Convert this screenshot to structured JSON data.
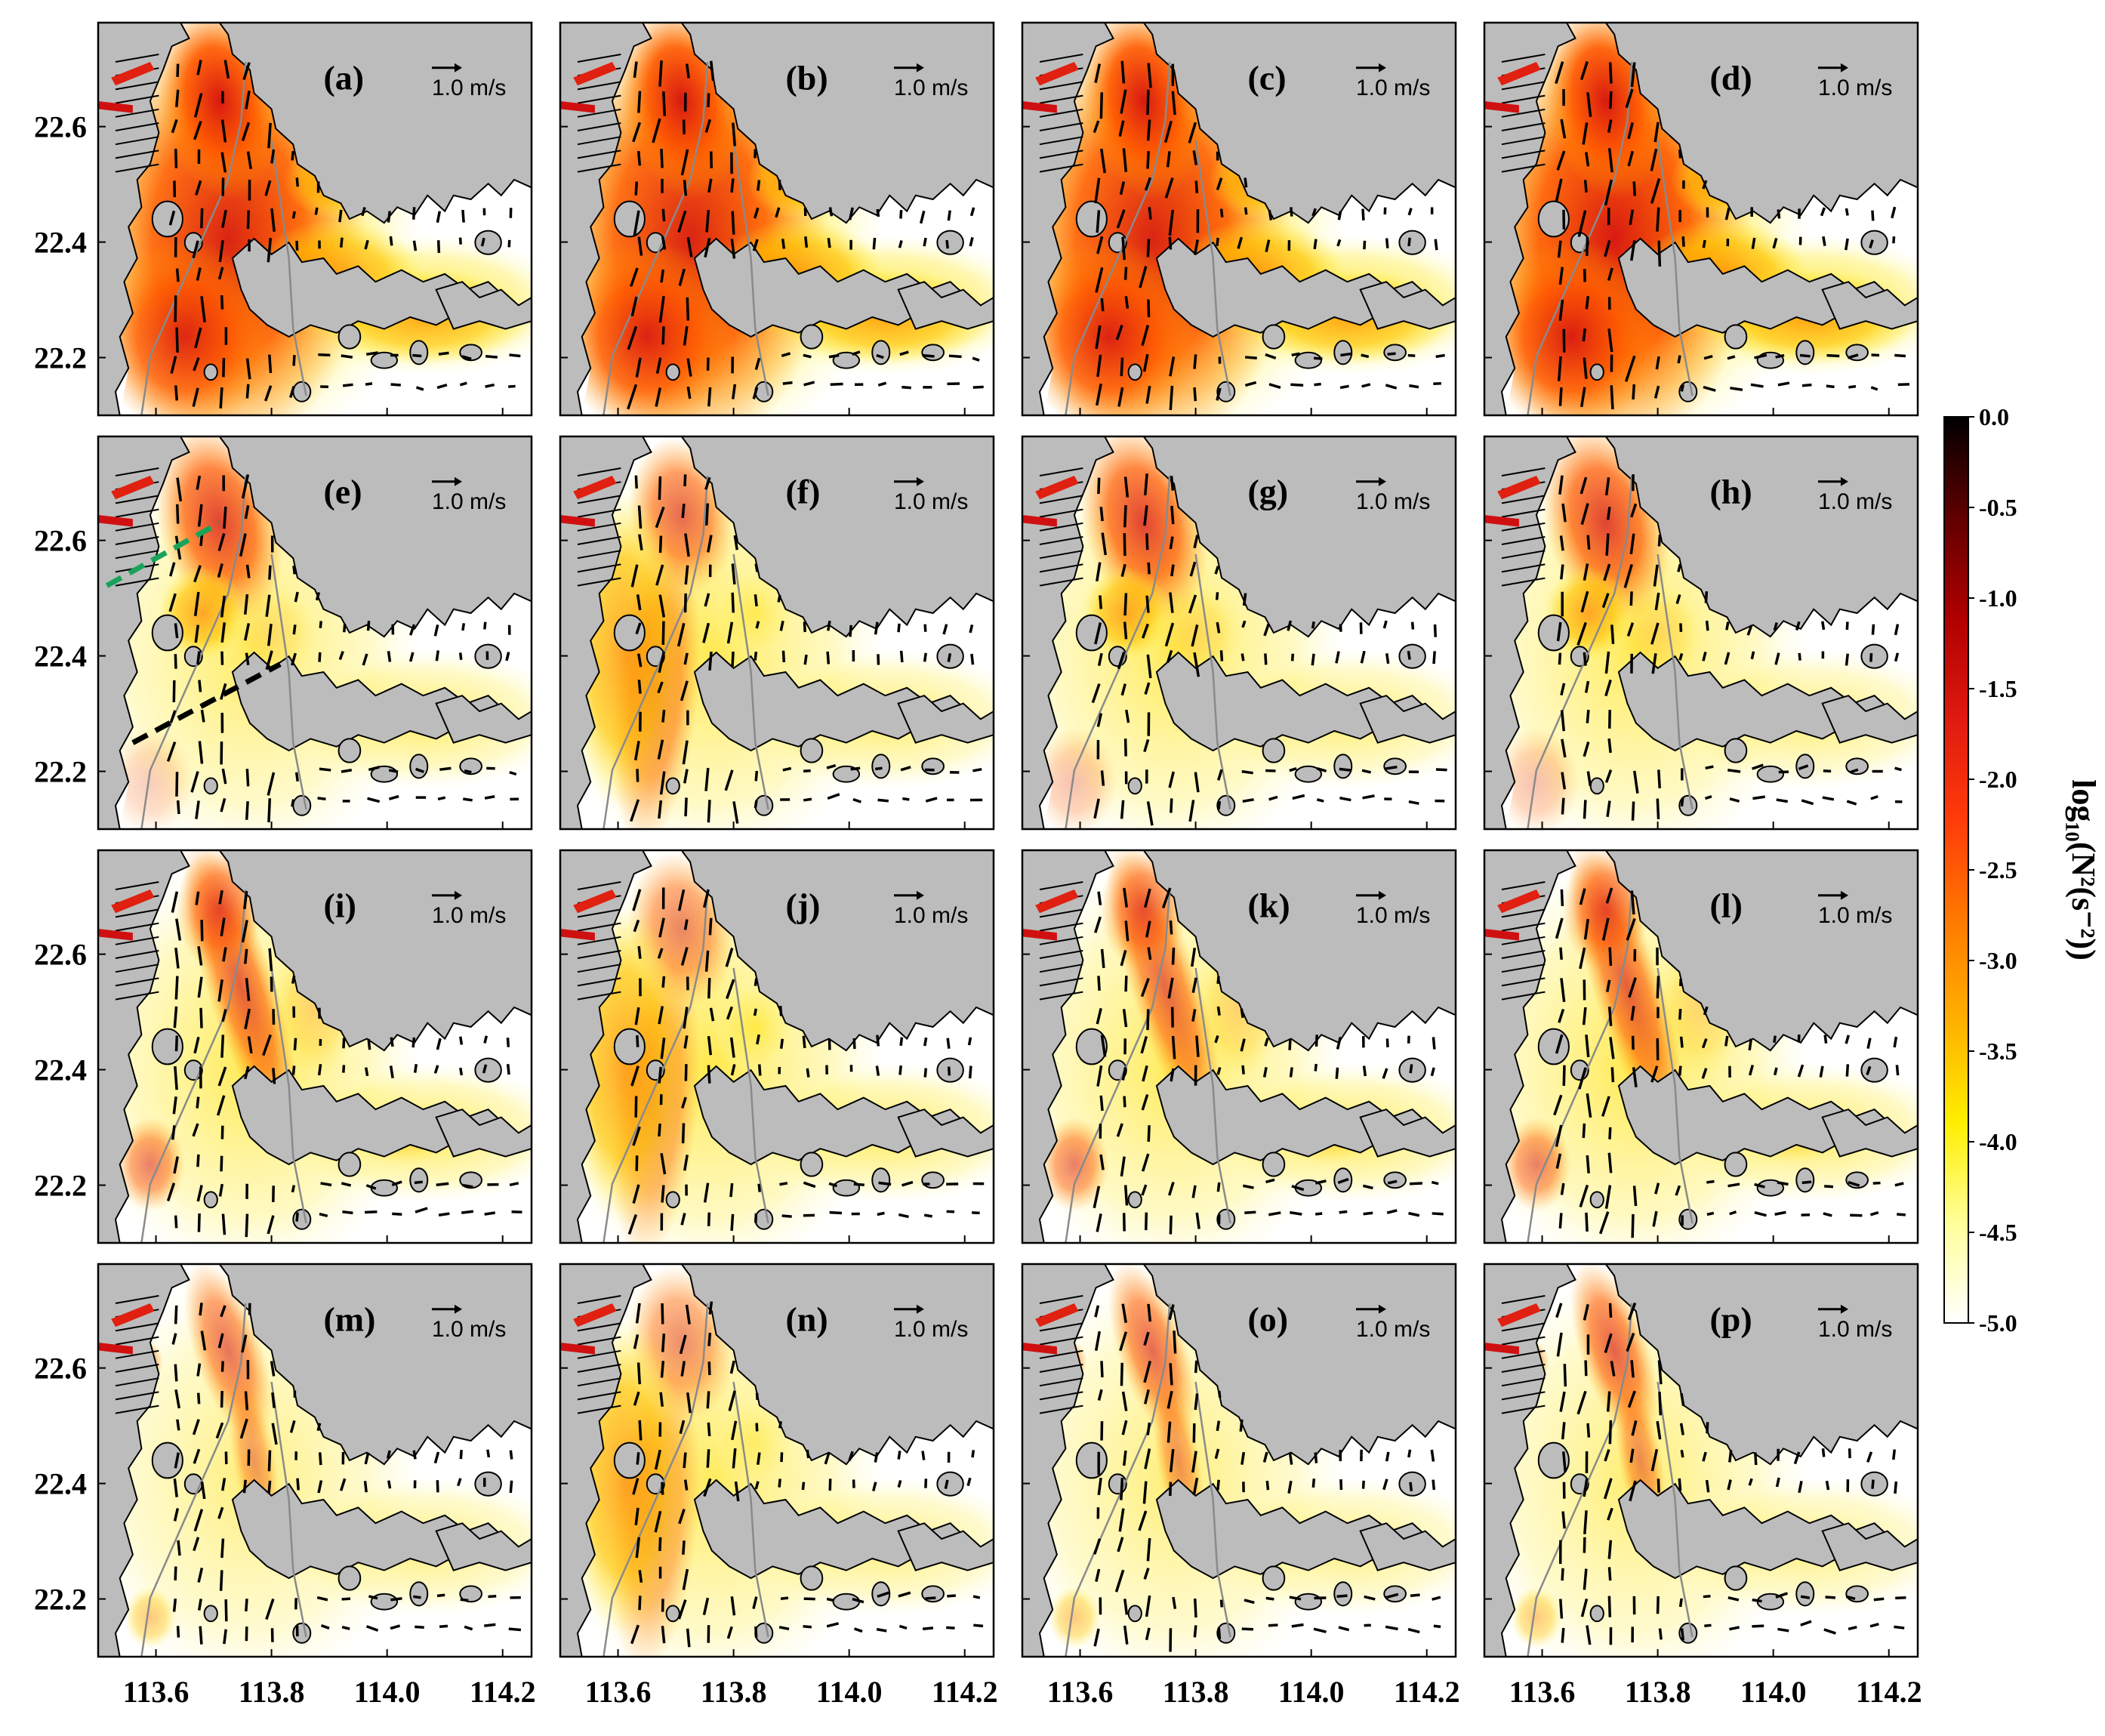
{
  "figure": {
    "panels": [
      {
        "id": "a",
        "label": "(a)",
        "intensity": 1.0,
        "mid": 0.95,
        "east": 0.9,
        "mode": "full"
      },
      {
        "id": "b",
        "label": "(b)",
        "intensity": 1.0,
        "mid": 1.0,
        "east": 0.95,
        "mode": "full"
      },
      {
        "id": "c",
        "label": "(c)",
        "intensity": 1.0,
        "mid": 1.0,
        "east": 0.95,
        "mode": "full"
      },
      {
        "id": "d",
        "label": "(d)",
        "intensity": 1.05,
        "mid": 1.05,
        "east": 1.0,
        "mode": "full"
      },
      {
        "id": "e",
        "label": "(e)",
        "intensity": 0.85,
        "mid": 0.35,
        "east": 0.4,
        "mode": "north",
        "transects": true
      },
      {
        "id": "f",
        "label": "(f)",
        "intensity": 0.8,
        "mid": 0.5,
        "east": 0.35,
        "mode": "west"
      },
      {
        "id": "g",
        "label": "(g)",
        "intensity": 0.85,
        "mid": 0.45,
        "east": 0.3,
        "mode": "north"
      },
      {
        "id": "h",
        "label": "(h)",
        "intensity": 0.85,
        "mid": 0.45,
        "east": 0.25,
        "mode": "north"
      },
      {
        "id": "i",
        "label": "(i)",
        "intensity": 0.8,
        "mid": 0.5,
        "east": 0.5,
        "mode": "channel"
      },
      {
        "id": "j",
        "label": "(j)",
        "intensity": 0.65,
        "mid": 0.55,
        "east": 0.45,
        "mode": "west"
      },
      {
        "id": "k",
        "label": "(k)",
        "intensity": 0.75,
        "mid": 0.45,
        "east": 0.5,
        "mode": "channel"
      },
      {
        "id": "l",
        "label": "(l)",
        "intensity": 0.8,
        "mid": 0.55,
        "east": 0.45,
        "mode": "channel"
      },
      {
        "id": "m",
        "label": "(m)",
        "intensity": 0.7,
        "mid": 0.15,
        "east": 0.2,
        "mode": "narrow"
      },
      {
        "id": "n",
        "label": "(n)",
        "intensity": 0.6,
        "mid": 0.4,
        "east": 0.2,
        "mode": "west"
      },
      {
        "id": "o",
        "label": "(o)",
        "intensity": 0.75,
        "mid": 0.2,
        "east": 0.15,
        "mode": "narrow"
      },
      {
        "id": "p",
        "label": "(p)",
        "intensity": 0.8,
        "mid": 0.25,
        "east": 0.15,
        "mode": "narrow"
      }
    ],
    "scale_label": "1.0 m/s",
    "axes": {
      "y_ticks": [
        "22.6",
        "22.4",
        "22.2"
      ],
      "y_values": [
        22.6,
        22.4,
        22.2
      ],
      "x_ticks": [
        "113.6",
        "113.8",
        "114.0",
        "114.2"
      ],
      "x_values": [
        113.6,
        113.8,
        114.0,
        114.2
      ],
      "lon_range": [
        113.5,
        114.25
      ],
      "lat_range": [
        22.1,
        22.78
      ]
    },
    "colorbar": {
      "title": "log₁₀(N²(s⁻²))",
      "ticks": [
        "0.0",
        "-0.5",
        "-1.0",
        "-1.5",
        "-2.0",
        "-2.5",
        "-3.0",
        "-3.5",
        "-4.0",
        "-4.5",
        "-5.0"
      ],
      "range": [
        -5.0,
        0.0
      ],
      "colors": [
        "#ffffff",
        "#ffff99",
        "#ffee00",
        "#ffb000",
        "#ff7a00",
        "#ff3b0a",
        "#e01a10",
        "#b00000",
        "#600000",
        "#000000"
      ]
    },
    "colors": {
      "land": "#bcbcbc",
      "water": "#ffffff",
      "isobath": "#8a8a8a",
      "arrow": "#000000",
      "transect_north": "#19a35a",
      "transect_south": "#000000"
    }
  }
}
